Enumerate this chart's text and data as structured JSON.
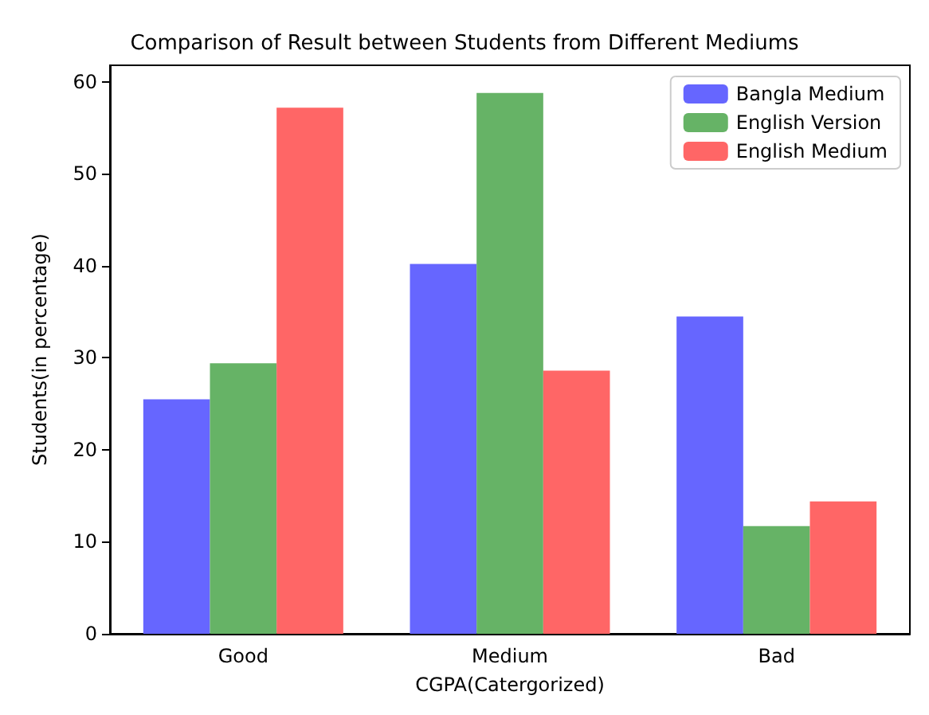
{
  "chart_data": {
    "type": "bar",
    "title": "Comparison of Result between Students from Different Mediums",
    "xlabel": "CGPA(Catergorized)",
    "ylabel": "Students(in percentage)",
    "categories": [
      "Good",
      "Medium",
      "Bad"
    ],
    "series": [
      {
        "name": "Bangla Medium",
        "color": "#6666ff",
        "values": [
          25.5,
          40.2,
          34.5
        ]
      },
      {
        "name": "English Version",
        "color": "#66b366",
        "values": [
          29.4,
          58.8,
          11.7
        ]
      },
      {
        "name": "English Medium",
        "color": "#ff6666",
        "values": [
          57.2,
          28.6,
          14.4
        ]
      }
    ],
    "ylim": [
      0,
      61.8
    ],
    "yticks": [
      0,
      10,
      20,
      30,
      40,
      50,
      60
    ],
    "grid": false,
    "legend": "top right"
  }
}
